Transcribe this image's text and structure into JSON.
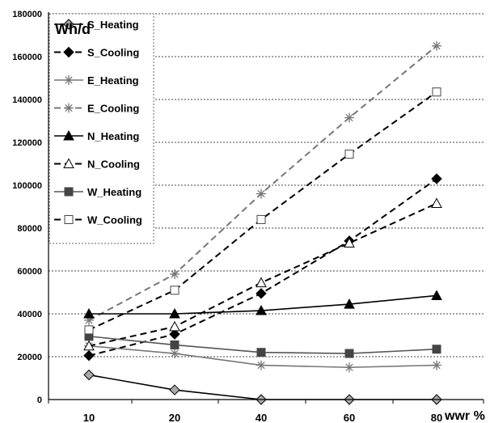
{
  "chart_data": {
    "type": "line",
    "title": "",
    "ylabel": "Wh/d",
    "xlabel": "wwr %",
    "categories": [
      "10",
      "20",
      "40",
      "60",
      "80"
    ],
    "ylim": [
      0,
      180000
    ],
    "yticks": [
      "0",
      "20000",
      "40000",
      "60000",
      "80000",
      "100000",
      "120000",
      "140000",
      "160000",
      "180000"
    ],
    "grid": "horizontal dotted",
    "legend_position": "top-left",
    "series": [
      {
        "name": "S_Heating",
        "values": [
          11500,
          4500,
          0,
          0,
          0
        ],
        "color": "#000000",
        "dash": "solid",
        "marker": "diamond-gray"
      },
      {
        "name": "S_Cooling",
        "values": [
          20500,
          30500,
          49500,
          74000,
          103000
        ],
        "color": "#000000",
        "dash": "dashed",
        "marker": "diamond-black"
      },
      {
        "name": "E_Heating",
        "values": [
          25000,
          21500,
          16000,
          15000,
          16000
        ],
        "color": "#777777",
        "dash": "solid",
        "marker": "asterisk"
      },
      {
        "name": "E_Cooling",
        "values": [
          37000,
          58500,
          96000,
          131500,
          165000
        ],
        "color": "#777777",
        "dash": "dashed",
        "marker": "asterisk"
      },
      {
        "name": "N_Heating",
        "values": [
          40000,
          40000,
          41500,
          44500,
          48500
        ],
        "color": "#000000",
        "dash": "solid",
        "marker": "triangle-black"
      },
      {
        "name": "N_Cooling",
        "values": [
          25000,
          34000,
          54500,
          73000,
          91500
        ],
        "color": "#000000",
        "dash": "dashed",
        "marker": "triangle-open"
      },
      {
        "name": "W_Heating",
        "values": [
          29500,
          25500,
          22000,
          21500,
          23500
        ],
        "color": "#555555",
        "dash": "solid",
        "marker": "square-filled"
      },
      {
        "name": "W_Cooling",
        "values": [
          32500,
          51000,
          84000,
          114500,
          143500
        ],
        "color": "#000000",
        "dash": "dashed",
        "marker": "square-open"
      }
    ]
  }
}
